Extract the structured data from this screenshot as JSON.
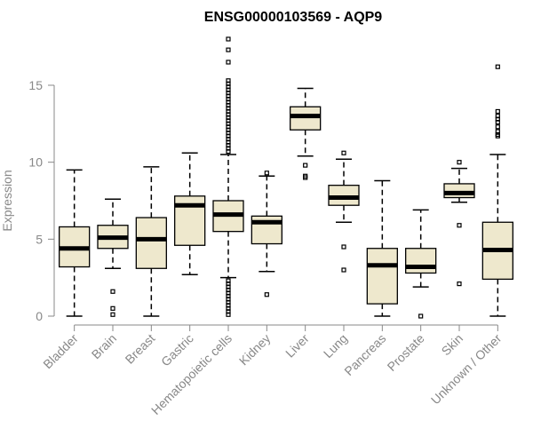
{
  "chart_data": {
    "type": "box",
    "title": "ENSG00000103569 - AQP9",
    "ylabel": "Expression",
    "ylim": [
      0,
      18.5
    ],
    "yticks": [
      0,
      5,
      10,
      15
    ],
    "categories": [
      "Bladder",
      "Brain",
      "Breast",
      "Gastric",
      "Hematopoietic cells",
      "Kidney",
      "Liver",
      "Lung",
      "Pancreas",
      "Prostate",
      "Skin",
      "Unknown / Other"
    ],
    "box_color": "#EEE8CD",
    "boxes": [
      {
        "category": "Bladder",
        "min": 0.0,
        "q1": 3.2,
        "median": 4.4,
        "q3": 5.8,
        "max": 9.5,
        "outliers": []
      },
      {
        "category": "Brain",
        "min": 3.1,
        "q1": 4.4,
        "median": 5.1,
        "q3": 5.9,
        "max": 7.6,
        "outliers": [
          1.6,
          0.5,
          0.1
        ]
      },
      {
        "category": "Breast",
        "min": 0.0,
        "q1": 3.1,
        "median": 5.0,
        "q3": 6.4,
        "max": 9.7,
        "outliers": []
      },
      {
        "category": "Gastric",
        "min": 2.7,
        "q1": 4.6,
        "median": 7.2,
        "q3": 7.8,
        "max": 10.6,
        "outliers": []
      },
      {
        "category": "Hematopoietic cells",
        "min": 2.5,
        "q1": 5.5,
        "median": 6.6,
        "q3": 7.5,
        "max": 10.5,
        "outliers": [
          18.0,
          17.3,
          16.5,
          15.3,
          15.1,
          14.9,
          14.7,
          14.5,
          14.3,
          14.1,
          13.9,
          13.7,
          13.5,
          13.3,
          13.1,
          12.9,
          12.7,
          12.5,
          12.3,
          12.1,
          11.9,
          11.7,
          11.5,
          11.3,
          11.1,
          10.9,
          10.7,
          2.3,
          2.1,
          1.9,
          1.7,
          1.5,
          1.3,
          1.1,
          0.9,
          0.7,
          0.5,
          0.3,
          0.1
        ]
      },
      {
        "category": "Kidney",
        "min": 2.9,
        "q1": 4.7,
        "median": 6.1,
        "q3": 6.5,
        "max": 9.1,
        "outliers": [
          9.3,
          1.4
        ]
      },
      {
        "category": "Liver",
        "min": 10.4,
        "q1": 12.1,
        "median": 13.0,
        "q3": 13.6,
        "max": 14.8,
        "outliers": [
          9.8,
          9.1,
          9.0
        ]
      },
      {
        "category": "Lung",
        "min": 6.1,
        "q1": 7.2,
        "median": 7.7,
        "q3": 8.5,
        "max": 10.2,
        "outliers": [
          10.6,
          4.5,
          3.0
        ]
      },
      {
        "category": "Pancreas",
        "min": 0.0,
        "q1": 0.8,
        "median": 3.3,
        "q3": 4.4,
        "max": 8.8,
        "outliers": []
      },
      {
        "category": "Prostate",
        "min": 1.9,
        "q1": 2.8,
        "median": 3.2,
        "q3": 4.4,
        "max": 6.9,
        "outliers": [
          0.0
        ]
      },
      {
        "category": "Skin",
        "min": 7.4,
        "q1": 7.7,
        "median": 8.0,
        "q3": 8.6,
        "max": 9.6,
        "outliers": [
          10.0,
          5.9,
          2.1
        ]
      },
      {
        "category": "Unknown / Other",
        "min": 0.0,
        "q1": 2.4,
        "median": 4.3,
        "q3": 6.1,
        "max": 10.5,
        "outliers": [
          16.2,
          13.3,
          13.0,
          12.8,
          12.6,
          12.3,
          12.0,
          11.8,
          11.7
        ]
      }
    ]
  }
}
